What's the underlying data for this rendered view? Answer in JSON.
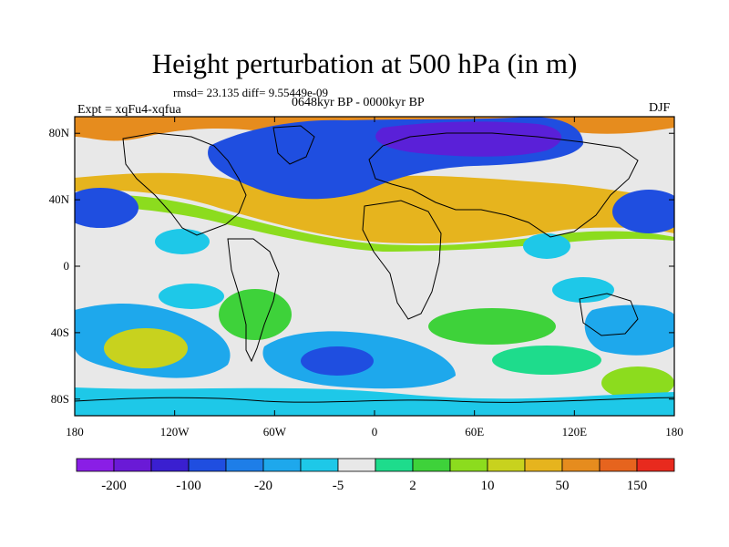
{
  "title": "Height perturbation at 500 hPa (in m)",
  "stats": "rmsd= 23.135 diff= 9.55449e-09",
  "experiment": "Expt = xqFu4-xqfua",
  "period": "0648kyr BP - 0000kyr BP",
  "season": "DJF",
  "lat_ticks": [
    "80N",
    "40N",
    "0",
    "40S",
    "80S"
  ],
  "lat_values": [
    80,
    40,
    0,
    -40,
    -80
  ],
  "lon_ticks": [
    "180",
    "120W",
    "60W",
    "0",
    "60E",
    "120E",
    "180"
  ],
  "lon_values": [
    -180,
    -120,
    -60,
    0,
    60,
    120,
    180
  ],
  "colorbar": {
    "labels": [
      "-200",
      "-100",
      "-20",
      "-5",
      "2",
      "10",
      "50",
      "150"
    ],
    "colors": [
      "#8a1ee6",
      "#6a1ad6",
      "#3a1fd0",
      "#1f4ee0",
      "#1e7ee8",
      "#1ea8ec",
      "#1ec8e8",
      "#e8e8e8",
      "#1edc8c",
      "#3ed23a",
      "#8cdc1e",
      "#c8d21e",
      "#e6b41e",
      "#e68c1e",
      "#e6641e",
      "#e82a1e"
    ]
  },
  "palette": {
    "neutral": "#e8e8e8",
    "strong_neg": "#5a20d8",
    "neg": "#1f4ee0",
    "mid_neg": "#1ea8ec",
    "light_neg": "#1ec8e8",
    "light_pos": "#1edc8c",
    "pos": "#3ed23a",
    "mid_pos": "#8cdc1e",
    "high_pos": "#c8d21e",
    "orange": "#e6b41e",
    "deep_orange": "#e68c1e"
  }
}
